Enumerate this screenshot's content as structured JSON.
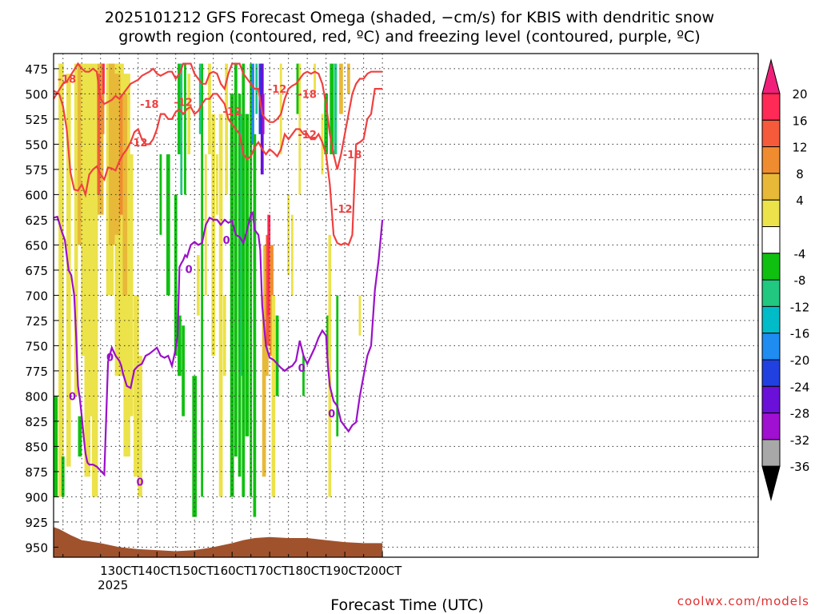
{
  "chart_data": {
    "type": "heatmap",
    "title_line1": "2025101212 GFS Forecast Omega (shaded, −cm/s) for KBIS with dendritic snow",
    "title_line2": "growth region (contoured, red, ºC) and freezing level (contoured, purple, ºC)",
    "xlabel": "Forecast Time (UTC)",
    "ylabel": "",
    "credit": "coolwx.com/models",
    "x_range": [
      12.5,
      200
    ],
    "y_range": [
      960,
      460
    ],
    "x_ticks": [
      {
        "value": 30,
        "label": "130CT",
        "sub": "2025"
      },
      {
        "value": 40,
        "label": "140CT",
        "sub": ""
      },
      {
        "value": 50,
        "label": "150CT",
        "sub": ""
      },
      {
        "value": 60,
        "label": "160CT",
        "sub": ""
      },
      {
        "value": 70,
        "label": "170CT",
        "sub": ""
      },
      {
        "value": 80,
        "label": "180CT",
        "sub": ""
      },
      {
        "value": 90,
        "label": "190CT",
        "sub": ""
      },
      {
        "value": 100,
        "label": "200CT",
        "sub": ""
      }
    ],
    "y_ticks": [
      475,
      500,
      525,
      550,
      575,
      600,
      625,
      650,
      675,
      700,
      725,
      750,
      775,
      800,
      825,
      850,
      875,
      900,
      925,
      950
    ],
    "colorbar": {
      "labels": [
        "20",
        "16",
        "12",
        "8",
        "4",
        "-4",
        "-8",
        "-12",
        "-16",
        "-20",
        "-24",
        "-28",
        "-32",
        "-36"
      ],
      "colors": [
        "#ff2a55",
        "#f55a3a",
        "#f08c30",
        "#e8b838",
        "#ece24a",
        "#ffffff",
        "#10c010",
        "#20c880",
        "#00bcc8",
        "#1e8cf0",
        "#2040e0",
        "#6a10d8",
        "#a010d0",
        "#a8a8a8",
        "#000000"
      ],
      "top_arrow_color": "#f0207a",
      "bottom_arrow_color": "#000000"
    },
    "contour_labels": {
      "red": [
        "-18",
        "-18",
        "-12",
        "-12",
        "-12",
        "-18",
        "-12",
        "-12",
        "-18",
        "-12"
      ],
      "purple": [
        "0",
        "0",
        "0",
        "0",
        "0",
        "0",
        "0"
      ]
    },
    "freezing_level_0C": {
      "x": [
        12.5,
        13.5,
        14,
        14.8,
        15.5,
        16,
        16.5,
        17.2,
        18,
        18.5,
        19,
        19.5,
        20,
        20.5,
        21,
        21.5,
        22,
        23,
        24,
        25,
        26,
        27,
        28,
        29,
        30,
        30.5,
        31,
        32,
        33,
        34,
        35,
        36,
        37,
        38,
        39,
        40,
        41,
        42,
        43,
        44,
        45,
        45.5,
        46,
        46.5,
        47,
        47.5,
        48,
        49,
        50,
        51,
        52,
        53,
        54,
        55,
        56,
        57,
        58,
        59,
        60,
        61,
        62,
        63,
        64,
        65,
        65.5,
        66,
        67,
        67.5,
        68,
        69,
        70,
        71,
        72,
        73,
        74,
        75,
        76,
        77,
        78,
        79,
        80,
        81,
        82,
        83,
        84,
        85,
        85.5,
        86,
        87,
        88,
        89,
        90,
        91,
        92,
        93,
        94,
        95,
        96,
        97,
        98,
        99,
        100
      ],
      "y": [
        623,
        622,
        628,
        638,
        645,
        660,
        675,
        680,
        700,
        740,
        790,
        803,
        820,
        840,
        857,
        866,
        868,
        868,
        870,
        874,
        878,
        766,
        752,
        760,
        765,
        770,
        778,
        790,
        792,
        774,
        770,
        768,
        760,
        758,
        755,
        752,
        760,
        762,
        760,
        770,
        753,
        740,
        672,
        668,
        665,
        660,
        662,
        650,
        647,
        650,
        648,
        630,
        623,
        625,
        625,
        630,
        625,
        628,
        626,
        640,
        642,
        648,
        635,
        620,
        618,
        635,
        640,
        655,
        710,
        750,
        762,
        764,
        768,
        772,
        775,
        772,
        770,
        765,
        745,
        760,
        768,
        760,
        752,
        742,
        735,
        740,
        770,
        790,
        805,
        810,
        825,
        830,
        835,
        829,
        826,
        800,
        780,
        760,
        750,
        695,
        665,
        625,
        625
      ]
    },
    "dgz_minus12": {
      "x": [
        12.5,
        14,
        15,
        16,
        17,
        18,
        19,
        20,
        21,
        22,
        23,
        24,
        25,
        26,
        27,
        28,
        29,
        30,
        31,
        32,
        33,
        34,
        35,
        36,
        37,
        38,
        39,
        40,
        41,
        42,
        43,
        44,
        45,
        46,
        47,
        48,
        49,
        50,
        51,
        52,
        53,
        54,
        55,
        56,
        57,
        58,
        59,
        60,
        61,
        62,
        63,
        64,
        65,
        66,
        67,
        68,
        69,
        70,
        71,
        72,
        73,
        74,
        75,
        76,
        77,
        78,
        79,
        80,
        81,
        82,
        83,
        84,
        85,
        86,
        87,
        88,
        89,
        90,
        91,
        92,
        93,
        94,
        95,
        96,
        97,
        98,
        99,
        100
      ],
      "y": [
        497,
        500,
        512,
        535,
        578,
        595,
        596,
        590,
        600,
        580,
        575,
        572,
        580,
        585,
        573,
        574,
        576,
        567,
        560,
        555,
        548,
        538,
        535,
        545,
        550,
        550,
        545,
        535,
        520,
        520,
        525,
        525,
        518,
        515,
        520,
        515,
        513,
        520,
        517,
        510,
        505,
        505,
        500,
        500,
        505,
        510,
        525,
        530,
        535,
        540,
        560,
        565,
        562,
        553,
        548,
        555,
        560,
        555,
        558,
        562,
        555,
        540,
        545,
        540,
        535,
        535,
        540,
        540,
        545,
        545,
        540,
        548,
        560,
        590,
        640,
        648,
        650,
        648,
        650,
        640,
        550,
        548,
        545,
        525,
        520,
        495,
        495,
        495
      ]
    },
    "dgz_minus18": {
      "x": [
        12.5,
        14,
        15,
        16,
        17,
        18,
        19,
        20,
        21,
        22,
        23,
        24,
        25,
        26,
        27,
        28,
        29,
        30,
        31,
        32,
        33,
        34,
        35,
        36,
        37,
        38,
        39,
        40,
        41,
        42,
        43,
        44,
        45,
        46,
        47,
        48,
        49,
        50,
        51,
        52,
        53,
        54,
        55,
        56,
        57,
        58,
        59,
        60,
        61,
        62,
        63,
        64,
        65,
        66,
        67,
        68,
        69,
        70,
        71,
        72,
        73,
        74,
        75,
        76,
        77,
        78,
        79,
        80,
        81,
        82,
        83,
        84,
        85,
        86,
        87,
        88,
        89,
        90,
        91,
        92,
        93,
        94,
        95,
        96,
        97,
        98,
        99,
        100
      ],
      "y": [
        505,
        496,
        490,
        488,
        482,
        476,
        470,
        475,
        478,
        478,
        475,
        478,
        505,
        510,
        508,
        506,
        502,
        505,
        500,
        495,
        490,
        488,
        486,
        482,
        480,
        478,
        475,
        480,
        482,
        480,
        478,
        478,
        485,
        480,
        470,
        470,
        470,
        480,
        485,
        490,
        490,
        480,
        478,
        480,
        490,
        495,
        480,
        470,
        470,
        470,
        480,
        485,
        490,
        495,
        495,
        520,
        525,
        528,
        528,
        525,
        520,
        505,
        495,
        492,
        490,
        485,
        480,
        478,
        480,
        478,
        480,
        490,
        510,
        540,
        560,
        575,
        560,
        540,
        520,
        500,
        490,
        485,
        485,
        480,
        478,
        478,
        478,
        478
      ]
    }
  }
}
